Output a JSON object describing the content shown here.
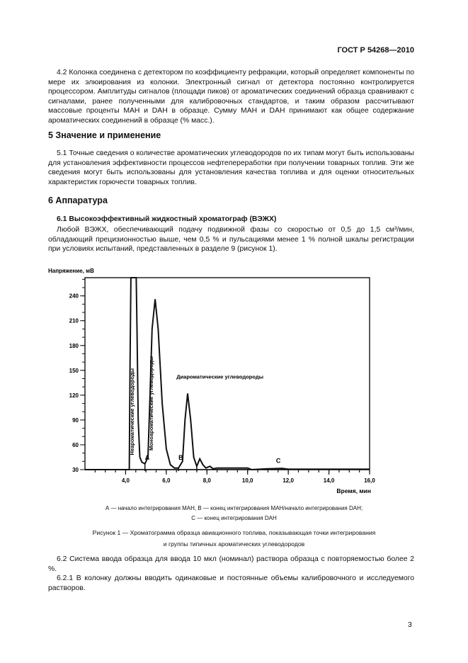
{
  "header": {
    "doc_code": "ГОСТ Р 54268—2010"
  },
  "sections": {
    "p4_2": "4.2 Колонка соединена с детектором по коэффициенту рефракции, который определяет компоненты по мере их элюирования из колонки. Электронный сигнал от детектора постоянно контролируется процессором. Амплитуды сигналов (площади пиков) от ароматических соединений образца сравнивают с сигналами, ранее полученными для калибровочных стандартов, и таким образом рассчитывают массовые проценты МАН и DАН в образце. Сумму МАН и DАН принимают как общее содержание ароматических соединений в образце (% масс.).",
    "h5": "5 Значение и применение",
    "p5_1": "5.1 Точные сведения о количестве ароматических углеводородов по их типам могут быть использованы для установления эффективности процессов нефтепереработки при получении товарных топлив. Эти же сведения могут быть использованы для установления качества топлива и для оценки относительных характеристик горючести товарных топлив.",
    "h6": "6 Аппаратура",
    "h6_1": "6.1 Высокоэффективный жидкостный хроматограф (ВЭЖХ)",
    "p6_1": "Любой ВЭЖХ, обеспечивающий подачу подвижной фазы со скоростью от 0,5 до 1,5 см³/мин, обладающий прецизионностью выше, чем 0,5 % и пульсациями менее 1 % полной шкалы регистрации при условиях испытаний, представленных в разделе 9 (рисунок 1).",
    "p6_2": "6.2 Система ввода образца для ввода 10 мкл (номинал) раствора образца с повторяемостью более 2 %.",
    "p6_2_1": "6.2.1 В колонку должны вводить одинаковые и постоянные объемы калибровочного и исследуемого растворов."
  },
  "figure": {
    "legend_line1": "А — начало интегрирования МАН, В — конец интегрирования МАН/начало интегрирования DАН;",
    "legend_line2": "С — конец интегрирования DАН",
    "caption_line1": "Рисунок 1 — Хроматограмма образца авиационного топлива, показывающая точки интегрирования",
    "caption_line2": "и группы типичных ароматических углеводородов"
  },
  "chart_data": {
    "type": "line",
    "ylabel": "Напряжение, мВ",
    "xlabel": "Время, мин",
    "xlim": [
      2.0,
      16.0
    ],
    "ylim": [
      30,
      262
    ],
    "x_ticks": [
      "4,0",
      "6,0",
      "8,0",
      "10,0",
      "12,0",
      "14,0",
      "16,0"
    ],
    "x_tick_values": [
      4,
      6,
      8,
      10,
      12,
      14,
      16
    ],
    "y_ticks": [
      "30",
      "60",
      "90",
      "120",
      "150",
      "180",
      "210",
      "240"
    ],
    "y_tick_values": [
      30,
      60,
      90,
      120,
      150,
      180,
      210,
      240
    ],
    "grid": false,
    "series": [
      {
        "x": [
          2.0,
          4.18,
          4.22,
          4.26,
          4.52,
          4.56,
          4.62,
          4.7,
          4.8,
          4.95,
          5.1,
          5.2,
          5.3,
          5.45,
          5.6,
          5.8,
          6.0,
          6.2,
          6.4,
          6.6,
          6.8,
          6.92,
          7.05,
          7.2,
          7.35,
          7.5,
          7.65,
          7.8,
          7.95,
          8.15,
          8.3,
          8.5,
          10.0,
          10.2,
          11.0,
          11.7,
          12.0,
          16.0
        ],
        "y": [
          30,
          30,
          160,
          262,
          262,
          200,
          90,
          45,
          39,
          37,
          45,
          120,
          200,
          236,
          200,
          110,
          55,
          36,
          32,
          32,
          40,
          90,
          122,
          90,
          45,
          34,
          43,
          36,
          32,
          34,
          31,
          32,
          32,
          30,
          31,
          31.5,
          30.5,
          30.5
        ]
      }
    ],
    "annotations": [
      {
        "text": "Неароматические углеводороды",
        "x": 4.4,
        "y": 100,
        "rotated": true
      },
      {
        "text": "Моноароматические углеводороды",
        "x": 5.35,
        "y": 110,
        "rotated": true
      },
      {
        "text": "Диароматические углеводороды",
        "x": 6.5,
        "y": 140
      },
      {
        "text": "А",
        "x": 4.95,
        "y": 42
      },
      {
        "text": "В",
        "x": 6.6,
        "y": 42
      },
      {
        "text": "С",
        "x": 11.4,
        "y": 38
      }
    ],
    "integration_marks_x": [
      4.95,
      6.6,
      7.5
    ]
  },
  "footer": {
    "page_number": "3"
  }
}
